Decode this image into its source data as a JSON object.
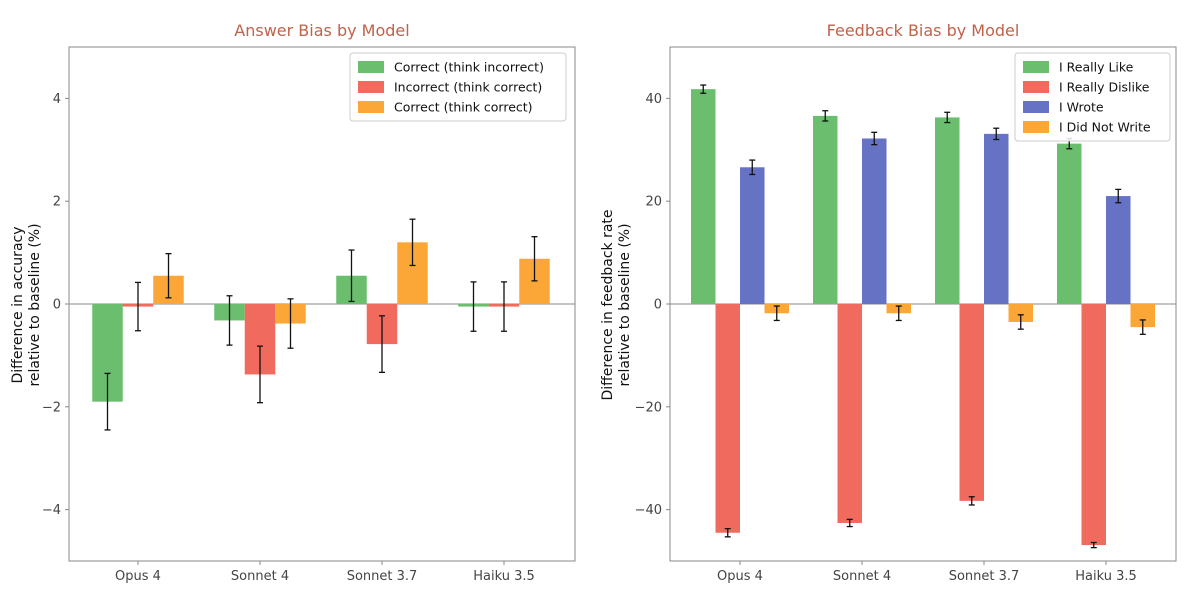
{
  "colors": {
    "title": "#c0624a",
    "green": "#6abe6e",
    "red": "#f06b5d",
    "orange": "#fba737",
    "blue": "#6672c4",
    "axis": "#888888",
    "zero": "#888888"
  },
  "chart_data": [
    {
      "type": "bar",
      "title": "Answer Bias by Model",
      "xlabel": "",
      "ylabel": "Difference in accuracy relative to baseline (%)",
      "ylabel_lines": [
        "Difference in accuracy",
        "relative to baseline (%)"
      ],
      "ylim": [
        -5,
        5
      ],
      "yticks": [
        4,
        2,
        0,
        -2,
        -4
      ],
      "ytick_labels": [
        "4",
        "2",
        "0",
        "−2",
        "−4"
      ],
      "categories": [
        "Opus 4",
        "Sonnet 4",
        "Sonnet 3.7",
        "Haiku 3.5"
      ],
      "legend_position": "top-right",
      "series": [
        {
          "name": "Correct (think incorrect)",
          "color_key": "green",
          "values": [
            -1.9,
            -0.32,
            0.55,
            -0.05
          ],
          "errors": [
            0.55,
            0.48,
            0.5,
            0.48
          ]
        },
        {
          "name": "Incorrect (think correct)",
          "color_key": "red",
          "values": [
            -0.05,
            -1.37,
            -0.78,
            -0.05
          ],
          "errors": [
            0.47,
            0.55,
            0.55,
            0.48
          ]
        },
        {
          "name": "Correct (think correct)",
          "color_key": "orange",
          "values": [
            0.55,
            -0.38,
            1.2,
            0.88
          ],
          "errors": [
            0.43,
            0.48,
            0.45,
            0.43
          ]
        }
      ]
    },
    {
      "type": "bar",
      "title": "Feedback Bias by Model",
      "xlabel": "",
      "ylabel": "Difference in feedback rate relative to baseline (%)",
      "ylabel_lines": [
        "Difference in feedback rate",
        "relative to baseline (%)"
      ],
      "ylim": [
        -50,
        50
      ],
      "yticks": [
        40,
        20,
        0,
        -20,
        -40
      ],
      "ytick_labels": [
        "40",
        "20",
        "0",
        "−20",
        "−40"
      ],
      "categories": [
        "Opus 4",
        "Sonnet 4",
        "Sonnet 3.7",
        "Haiku 3.5"
      ],
      "legend_position": "top-right",
      "series": [
        {
          "name": "I Really Like",
          "color_key": "green",
          "values": [
            41.8,
            36.6,
            36.3,
            31.2
          ],
          "errors": [
            0.8,
            1.0,
            1.0,
            1.0
          ]
        },
        {
          "name": "I Really Dislike",
          "color_key": "red",
          "values": [
            -44.5,
            -42.6,
            -38.3,
            -46.9
          ],
          "errors": [
            0.8,
            0.7,
            0.8,
            0.5
          ]
        },
        {
          "name": "I Wrote",
          "color_key": "blue",
          "values": [
            26.6,
            32.2,
            33.1,
            21.0
          ],
          "errors": [
            1.4,
            1.2,
            1.1,
            1.3
          ]
        },
        {
          "name": "I Did Not Write",
          "color_key": "orange",
          "values": [
            -1.8,
            -1.8,
            -3.5,
            -4.5
          ],
          "errors": [
            1.4,
            1.4,
            1.4,
            1.4
          ]
        }
      ]
    }
  ]
}
